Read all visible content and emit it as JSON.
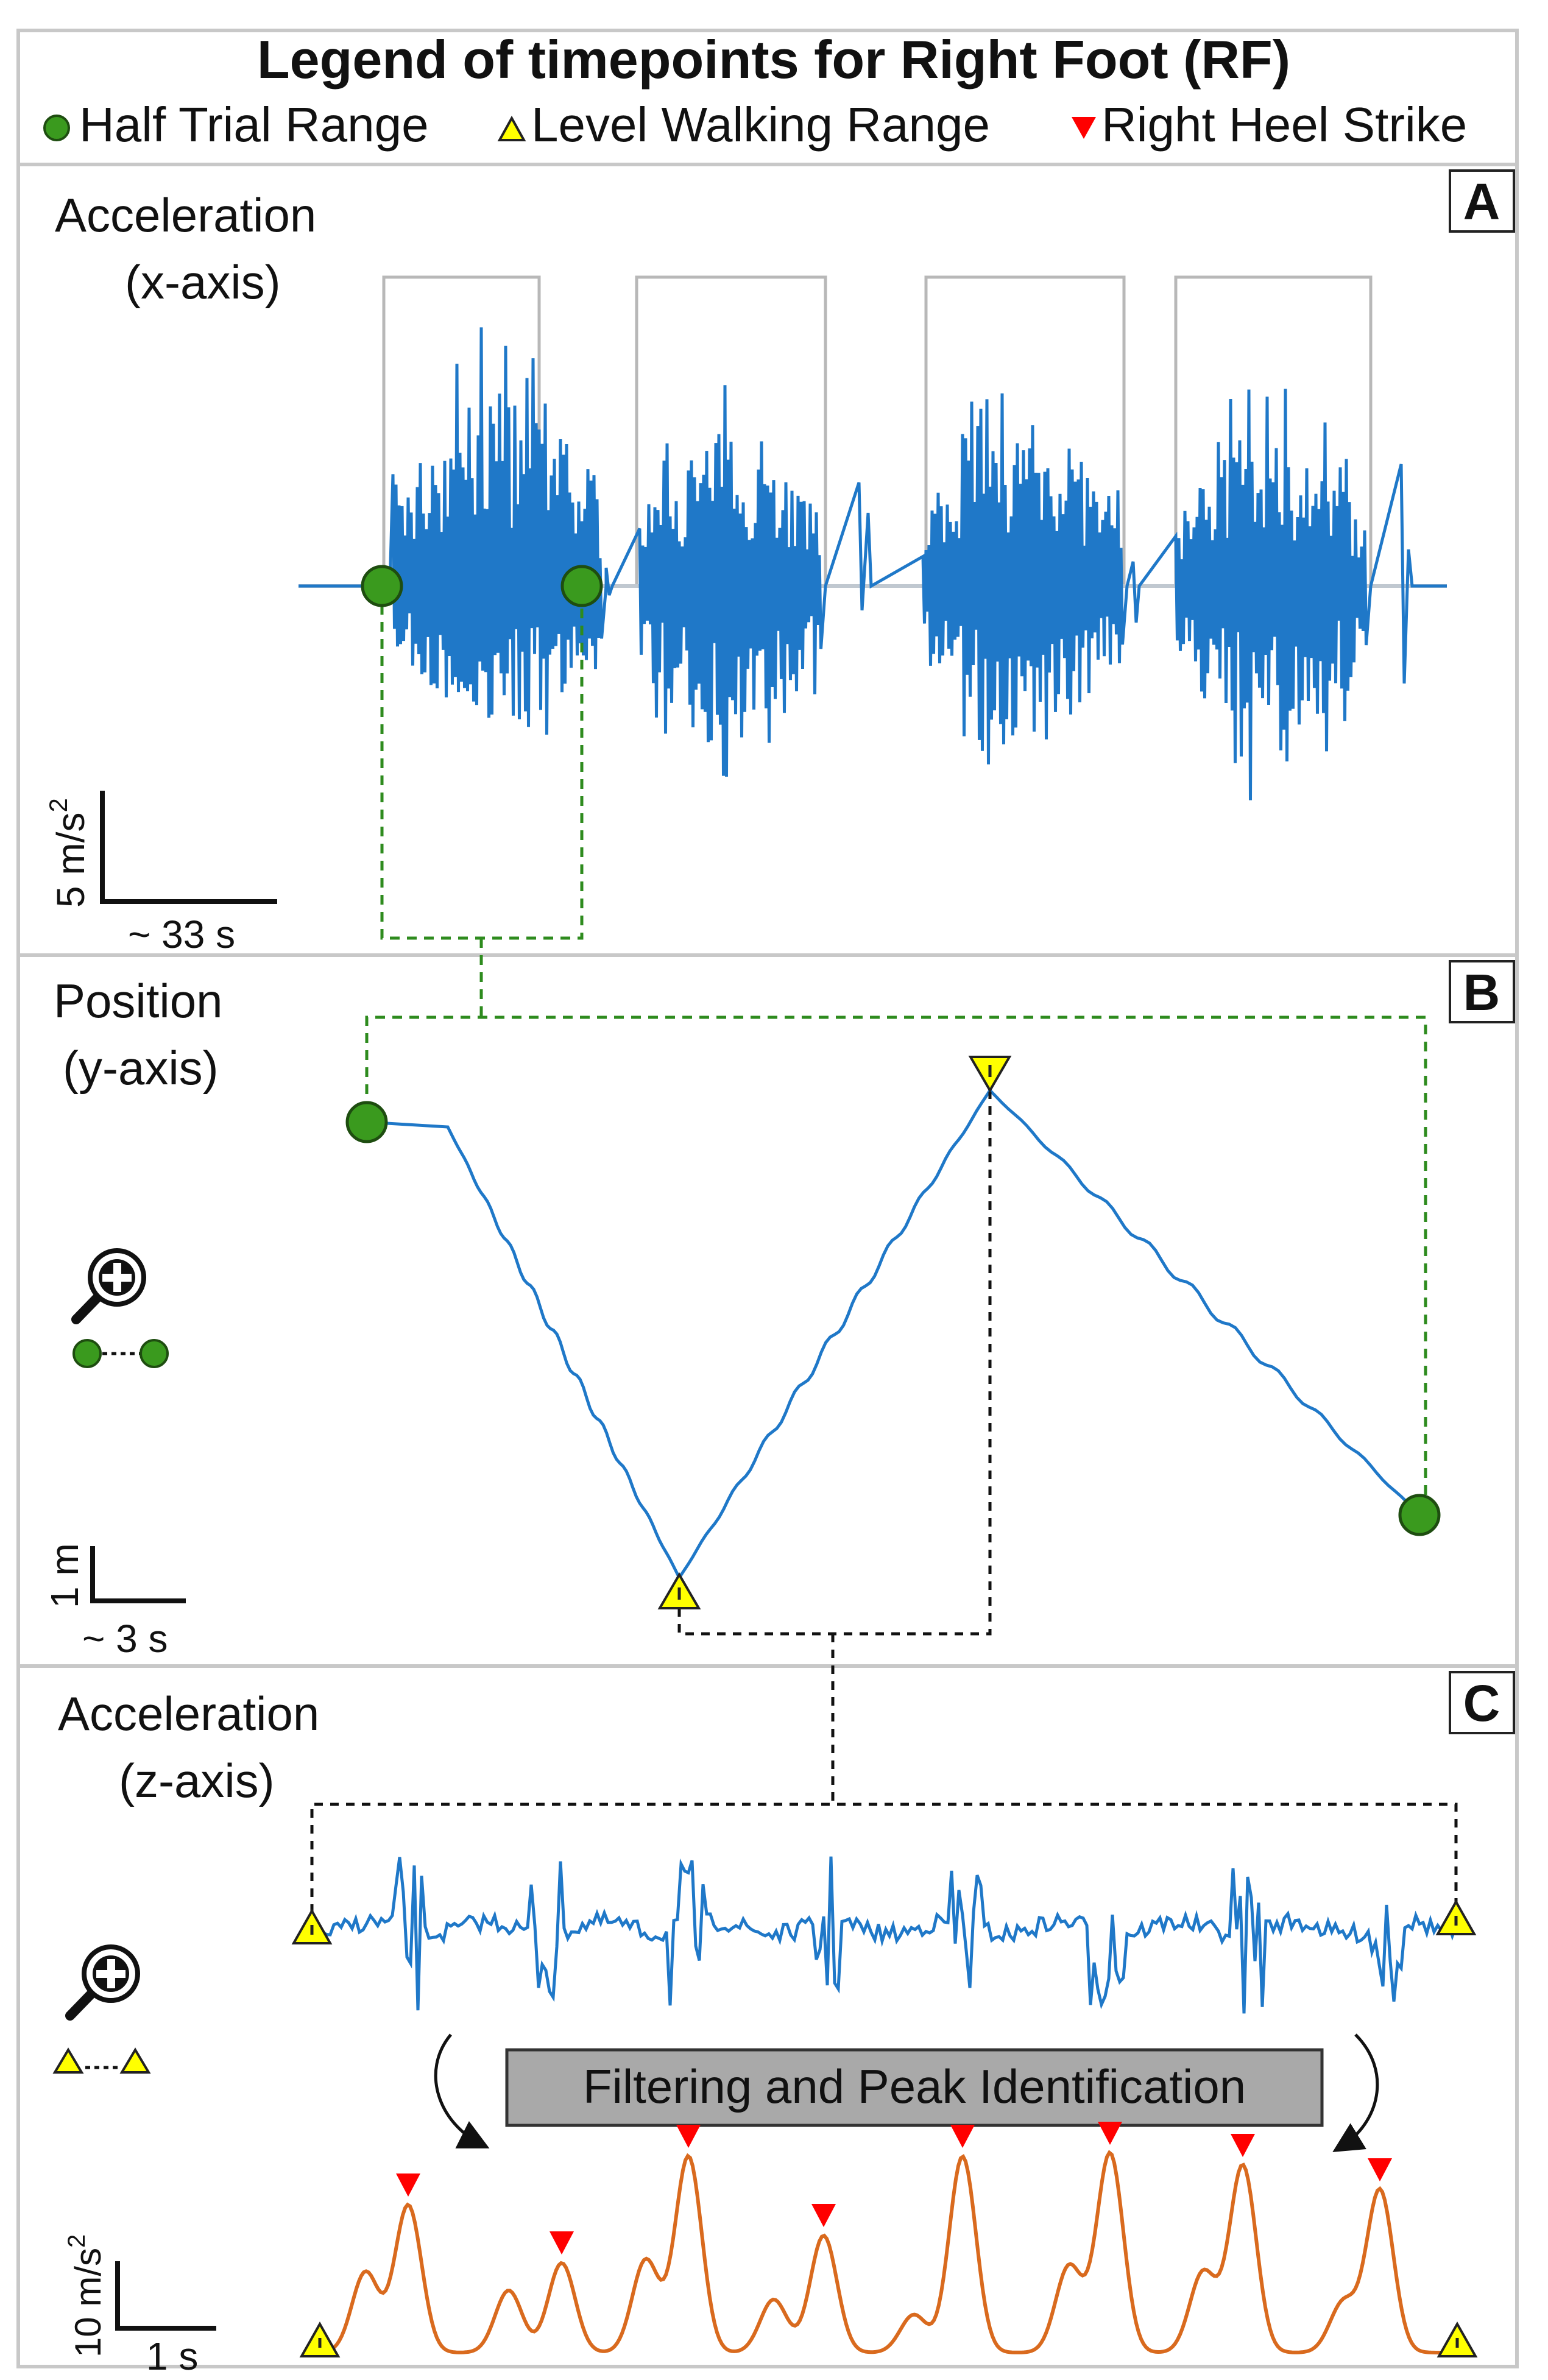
{
  "legend": {
    "title": "Legend of timepoints for Right Foot (RF)",
    "items": [
      {
        "marker": "green-circle",
        "label": "Half Trial Range",
        "color": "#3a9a1e"
      },
      {
        "marker": "yellow-triangle-up",
        "label": "Level Walking Range",
        "color": "#ffff00"
      },
      {
        "marker": "red-triangle-down",
        "label": "Right Heel Strike",
        "color": "#ff0000"
      }
    ]
  },
  "panel_a": {
    "letter": "A",
    "title_line1": "Acceleration",
    "title_line2": "(x-axis)",
    "scale_y": "5 m/s",
    "scale_y_sup": "2",
    "scale_x": "~ 33 s"
  },
  "panel_b": {
    "letter": "B",
    "title_line1": "Position",
    "title_line2": "(y-axis)",
    "scale_y": "1 m",
    "scale_x": "~ 3 s",
    "zoom_icon": "magnifier-plus-icon"
  },
  "panel_c": {
    "letter": "C",
    "title_line1": "Acceleration",
    "title_line2": "(z-axis)",
    "process_label": "Filtering and Peak Identification",
    "scale_y": "10 m/s",
    "scale_y_sup": "2",
    "scale_x": "1 s",
    "zoom_icon": "magnifier-plus-icon"
  },
  "colors": {
    "signal_blue": "#1f78c8",
    "filtered_orange": "#d96a1e",
    "green": "#3a9a1e",
    "yellow": "#ffff00",
    "red": "#ff0000",
    "box_gray": "#b8b8b8",
    "label_bg": "#a9a9a9"
  }
}
